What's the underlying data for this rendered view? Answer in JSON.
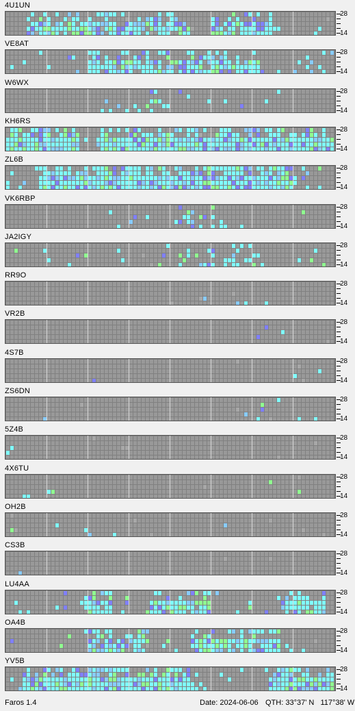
{
  "app": {
    "name": "Faros 1.4"
  },
  "status": {
    "app_label": "Faros 1.4",
    "date_label": "Date: 2024-06-06",
    "qth_label": "QTH: 33°37' N   117°38' W"
  },
  "scale": {
    "top_label": "28",
    "bottom_label": "14"
  },
  "beacons": [
    {
      "callsign": "4U1UN",
      "activity": "high"
    },
    {
      "callsign": "VE8AT",
      "activity": "high"
    },
    {
      "callsign": "W6WX",
      "activity": "medium"
    },
    {
      "callsign": "KH6RS",
      "activity": "very-high"
    },
    {
      "callsign": "ZL6B",
      "activity": "very-high"
    },
    {
      "callsign": "VK6RBP",
      "activity": "medium"
    },
    {
      "callsign": "JA2IGY",
      "activity": "medium"
    },
    {
      "callsign": "RR9O",
      "activity": "minimal"
    },
    {
      "callsign": "VR2B",
      "activity": "none"
    },
    {
      "callsign": "4S7B",
      "activity": "none"
    },
    {
      "callsign": "ZS6DN",
      "activity": "low"
    },
    {
      "callsign": "5Z4B",
      "activity": "none"
    },
    {
      "callsign": "4X6TU",
      "activity": "low"
    },
    {
      "callsign": "OH2B",
      "activity": "minimal"
    },
    {
      "callsign": "CS3B",
      "activity": "none"
    },
    {
      "callsign": "LU4AA",
      "activity": "high"
    },
    {
      "callsign": "OA4B",
      "activity": "high"
    },
    {
      "callsign": "YV5B",
      "activity": "very-high"
    }
  ],
  "colors": {
    "background": "#f0f0f0",
    "grid_bg": "#808080",
    "cell_empty": "#999999",
    "cell_cyan": "#80ffff",
    "cell_light_blue": "#88ccff",
    "cell_blue": "#8080ff",
    "cell_green": "#90ff90",
    "cell_gray": "#a8a8a8"
  }
}
